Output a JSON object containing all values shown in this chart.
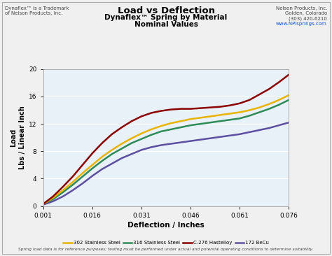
{
  "title": "Load vs Deflection",
  "subtitle1": "Dynaflex™ Spring by Material",
  "subtitle2": "Nominal Values",
  "xlabel": "Deflection / Inches",
  "ylabel": "Load\nLbs / Linear Inch",
  "x_ticks": [
    0.001,
    0.016,
    0.031,
    0.046,
    0.061,
    0.076
  ],
  "x_tick_labels": [
    "0.001",
    "0.016",
    "0.031",
    "0.046",
    "0.061",
    "0.076"
  ],
  "ylim": [
    0,
    20
  ],
  "yticks": [
    0,
    4,
    8,
    12,
    16,
    20
  ],
  "xlim": [
    0.001,
    0.076
  ],
  "series_302": {
    "label": "302 Stainless Steel",
    "color": "#e8b400",
    "x": [
      0.001,
      0.004,
      0.007,
      0.01,
      0.013,
      0.016,
      0.019,
      0.022,
      0.025,
      0.028,
      0.031,
      0.034,
      0.037,
      0.04,
      0.043,
      0.046,
      0.049,
      0.052,
      0.055,
      0.058,
      0.061,
      0.064,
      0.067,
      0.07,
      0.073,
      0.076
    ],
    "y": [
      0.3,
      1.2,
      2.3,
      3.5,
      4.8,
      6.0,
      7.2,
      8.2,
      9.1,
      9.9,
      10.6,
      11.2,
      11.7,
      12.1,
      12.4,
      12.7,
      12.9,
      13.1,
      13.3,
      13.5,
      13.7,
      14.0,
      14.4,
      14.9,
      15.5,
      16.2
    ]
  },
  "series_316": {
    "label": "316 Stainless Steel",
    "color": "#2e8b57",
    "x": [
      0.001,
      0.004,
      0.007,
      0.01,
      0.013,
      0.016,
      0.019,
      0.022,
      0.025,
      0.028,
      0.031,
      0.034,
      0.037,
      0.04,
      0.043,
      0.046,
      0.049,
      0.052,
      0.055,
      0.058,
      0.061,
      0.064,
      0.067,
      0.07,
      0.073,
      0.076
    ],
    "y": [
      0.3,
      1.0,
      2.0,
      3.1,
      4.3,
      5.5,
      6.6,
      7.6,
      8.4,
      9.2,
      9.8,
      10.4,
      10.9,
      11.2,
      11.5,
      11.8,
      12.0,
      12.2,
      12.4,
      12.6,
      12.8,
      13.2,
      13.7,
      14.2,
      14.8,
      15.5
    ]
  },
  "series_hastelloy": {
    "label": "C-276 Hastelloy",
    "color": "#8b0000",
    "x": [
      0.001,
      0.004,
      0.007,
      0.01,
      0.013,
      0.016,
      0.019,
      0.022,
      0.025,
      0.028,
      0.031,
      0.034,
      0.037,
      0.04,
      0.043,
      0.046,
      0.049,
      0.052,
      0.055,
      0.058,
      0.061,
      0.064,
      0.067,
      0.07,
      0.073,
      0.076
    ],
    "y": [
      0.3,
      1.4,
      2.8,
      4.3,
      6.0,
      7.7,
      9.2,
      10.5,
      11.5,
      12.4,
      13.1,
      13.6,
      13.9,
      14.1,
      14.2,
      14.2,
      14.3,
      14.4,
      14.5,
      14.7,
      15.0,
      15.5,
      16.3,
      17.1,
      18.1,
      19.2
    ]
  },
  "series_becu": {
    "label": "172 BeCu",
    "color": "#5b4fa0",
    "x": [
      0.001,
      0.004,
      0.007,
      0.01,
      0.013,
      0.016,
      0.019,
      0.022,
      0.025,
      0.028,
      0.031,
      0.034,
      0.037,
      0.04,
      0.043,
      0.046,
      0.049,
      0.052,
      0.055,
      0.058,
      0.061,
      0.064,
      0.067,
      0.07,
      0.073,
      0.076
    ],
    "y": [
      0.2,
      0.7,
      1.4,
      2.3,
      3.3,
      4.4,
      5.4,
      6.2,
      7.0,
      7.6,
      8.2,
      8.6,
      8.9,
      9.1,
      9.3,
      9.5,
      9.7,
      9.9,
      10.1,
      10.3,
      10.5,
      10.8,
      11.1,
      11.4,
      11.8,
      12.2
    ]
  },
  "plot_bg_top": "#c8d8ee",
  "plot_bg_bottom": "#e8f0f8",
  "fig_bg": "#f0f0f0",
  "top_left_text1": "Dynaflex™ is a Trademark",
  "top_left_text2": "of Nelson Products, Inc.",
  "top_right_text1": "Nelson Products, Inc.",
  "top_right_text2": "Golden, Colorado",
  "top_right_text3": "(303) 420-6210",
  "top_right_text4": "www.NPIsprings.com",
  "footnote": "Spring load data is for reference purposes; testing must be performed under actual and potential operating conditions to determine suitability.",
  "line_width": 1.8
}
